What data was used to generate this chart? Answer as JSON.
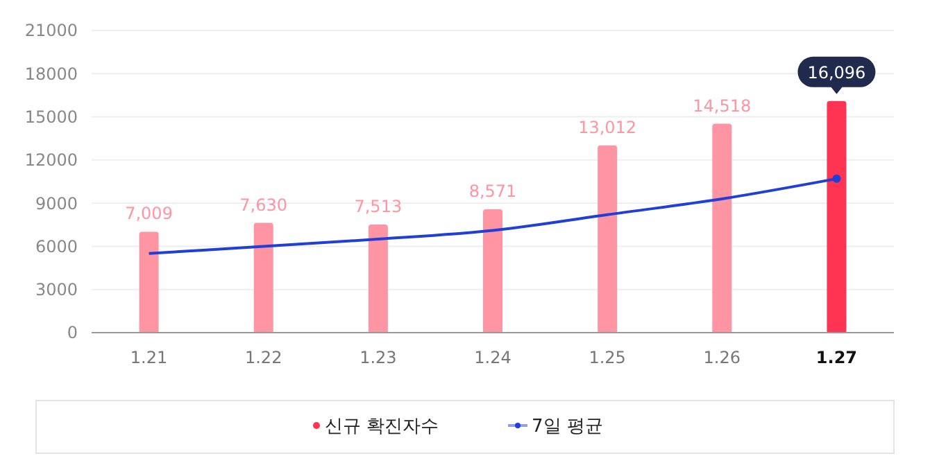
{
  "chart_data": {
    "type": "bar",
    "categories": [
      "1.21",
      "1.22",
      "1.23",
      "1.24",
      "1.25",
      "1.26",
      "1.27"
    ],
    "series": [
      {
        "name": "신규 확진자수",
        "color": "#ff3352",
        "colors": [
          "#ff94a3",
          "#ff94a3",
          "#ff94a3",
          "#ff94a3",
          "#ff94a3",
          "#ff94a3",
          "#ff3352"
        ],
        "values": [
          7009,
          7630,
          7513,
          8571,
          13012,
          14518,
          16096
        ],
        "value_labels": [
          "7,009",
          "7,630",
          "7,513",
          "8,571",
          "13,012",
          "14,518",
          "16,096"
        ]
      },
      {
        "name": "7일 평균",
        "type": "line",
        "color": "#1f3fd6",
        "values": [
          5500,
          6000,
          6500,
          7100,
          8200,
          9300,
          10700
        ]
      }
    ],
    "ylim": [
      0,
      21000
    ],
    "yticks": [
      0,
      3000,
      6000,
      9000,
      12000,
      15000,
      18000,
      21000
    ],
    "grid": "y",
    "legend": "bottom",
    "marker": "none",
    "line_style": "solid"
  }
}
